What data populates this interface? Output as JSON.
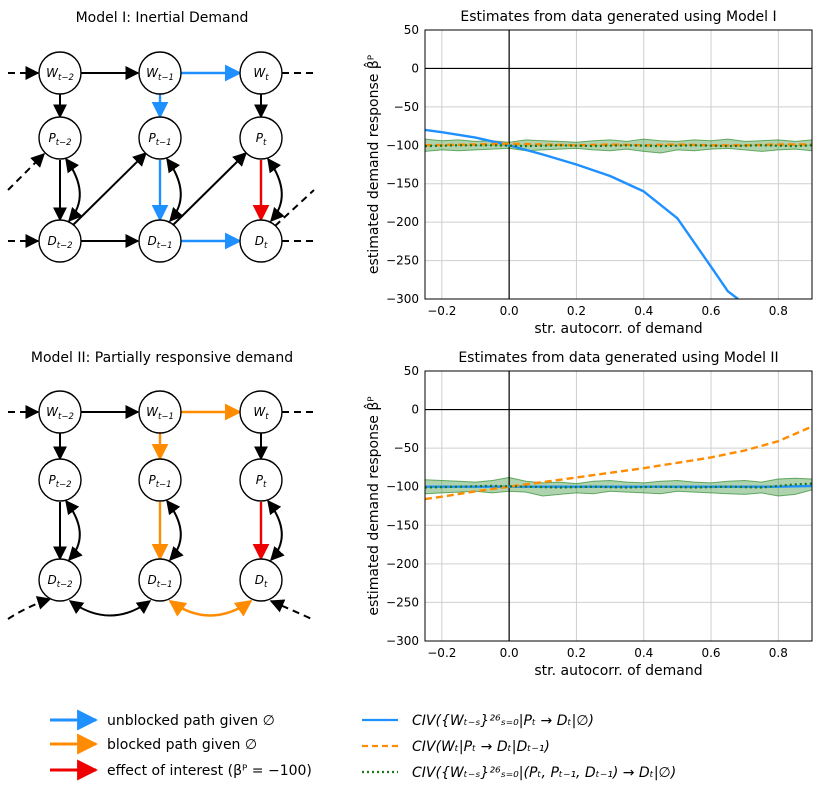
{
  "colors": {
    "blue": "#1e90ff",
    "orange": "#ff8c00",
    "red": "#ee0000",
    "green": "#1a7a1a",
    "band": "#2e8b2e"
  },
  "diagram1": {
    "title": "Model I: Inertial Demand"
  },
  "diagram2": {
    "title": "Model II: Partially responsive demand"
  },
  "nodes": {
    "W2": [
      "W",
      "t−2"
    ],
    "W1": [
      "W",
      "t−1"
    ],
    "W0": [
      "W",
      "t"
    ],
    "P2": [
      "P",
      "t−2"
    ],
    "P1": [
      "P",
      "t−1"
    ],
    "P0": [
      "P",
      "t"
    ],
    "D2": [
      "D",
      "t−2"
    ],
    "D1": [
      "D",
      "t−1"
    ],
    "D0": [
      "D",
      "t"
    ]
  },
  "chart_data": [
    {
      "type": "line",
      "title": "Estimates from data generated using Model I",
      "xlabel": "str. autocorr. of demand",
      "ylabel": "estimated demand response β̂ᴾ",
      "xlim": [
        -0.25,
        0.9
      ],
      "ylim": [
        -300,
        50
      ],
      "xticks": [
        -0.2,
        0.0,
        0.2,
        0.4,
        0.6,
        0.8
      ],
      "xtick_labels": [
        "−0.2",
        "0.0",
        "0.2",
        "0.4",
        "0.6",
        "0.8"
      ],
      "yticks": [
        50,
        0,
        -50,
        -100,
        -150,
        -200,
        -250,
        -300
      ],
      "ytick_labels": [
        "50",
        "0",
        "−50",
        "−100",
        "−150",
        "−200",
        "−250",
        "−300"
      ],
      "grid": true,
      "series": [
        {
          "name": "blue",
          "style": "solid",
          "x": [
            -0.25,
            -0.2,
            -0.1,
            0.0,
            0.1,
            0.2,
            0.3,
            0.4,
            0.5,
            0.6,
            0.65,
            0.68
          ],
          "y": [
            -80,
            -83,
            -90,
            -100,
            -112,
            -125,
            -140,
            -160,
            -195,
            -258,
            -290,
            -300
          ]
        },
        {
          "name": "orange",
          "style": "dashed",
          "x": [
            -0.25,
            -0.1,
            0.0,
            0.1,
            0.2,
            0.3,
            0.4,
            0.5,
            0.6,
            0.7,
            0.8,
            0.9
          ],
          "y": [
            -100,
            -99,
            -98,
            -99,
            -100,
            -99,
            -100,
            -99,
            -100,
            -100,
            -99,
            -99
          ]
        },
        {
          "name": "green",
          "style": "dotted",
          "x": [
            -0.25,
            -0.15,
            -0.05,
            0.05,
            0.15,
            0.25,
            0.35,
            0.45,
            0.55,
            0.65,
            0.75,
            0.85,
            0.9
          ],
          "y": [
            -101,
            -100,
            -100,
            -101,
            -100,
            -101,
            -100,
            -101,
            -100,
            -101,
            -100,
            -101,
            -100
          ]
        }
      ],
      "band": {
        "x": [
          -0.25,
          -0.2,
          -0.15,
          -0.1,
          -0.05,
          0.0,
          0.05,
          0.1,
          0.15,
          0.2,
          0.25,
          0.3,
          0.35,
          0.4,
          0.45,
          0.5,
          0.55,
          0.6,
          0.65,
          0.7,
          0.75,
          0.8,
          0.85,
          0.9
        ],
        "upper": [
          -92,
          -94,
          -93,
          -95,
          -94,
          -96,
          -93,
          -94,
          -95,
          -96,
          -94,
          -93,
          -95,
          -92,
          -94,
          -95,
          -93,
          -94,
          -92,
          -95,
          -94,
          -93,
          -95,
          -93
        ],
        "lower": [
          -108,
          -106,
          -107,
          -106,
          -105,
          -104,
          -107,
          -106,
          -105,
          -104,
          -106,
          -107,
          -105,
          -108,
          -110,
          -106,
          -107,
          -105,
          -104,
          -106,
          -108,
          -106,
          -105,
          -107
        ]
      }
    },
    {
      "type": "line",
      "title": "Estimates from data generated using Model II",
      "xlabel": "str. autocorr. of demand",
      "ylabel": "estimated demand response β̂ᴾ",
      "xlim": [
        -0.25,
        0.9
      ],
      "ylim": [
        -300,
        50
      ],
      "xticks": [
        -0.2,
        0.0,
        0.2,
        0.4,
        0.6,
        0.8
      ],
      "xtick_labels": [
        "−0.2",
        "0.0",
        "0.2",
        "0.4",
        "0.6",
        "0.8"
      ],
      "yticks": [
        50,
        0,
        -50,
        -100,
        -150,
        -200,
        -250,
        -300
      ],
      "ytick_labels": [
        "50",
        "0",
        "−50",
        "−100",
        "−150",
        "−200",
        "−250",
        "−300"
      ],
      "grid": true,
      "series": [
        {
          "name": "blue",
          "style": "solid",
          "x": [
            -0.25,
            -0.1,
            0.0,
            0.1,
            0.2,
            0.3,
            0.4,
            0.5,
            0.6,
            0.7,
            0.8,
            0.9
          ],
          "y": [
            -100,
            -100,
            -100,
            -100,
            -100,
            -100,
            -100,
            -100,
            -100,
            -100,
            -100,
            -99
          ]
        },
        {
          "name": "orange",
          "style": "dashed",
          "x": [
            -0.25,
            -0.2,
            -0.1,
            0.0,
            0.1,
            0.2,
            0.3,
            0.4,
            0.5,
            0.6,
            0.7,
            0.8,
            0.9
          ],
          "y": [
            -116,
            -113,
            -106,
            -100,
            -94,
            -88,
            -82,
            -76,
            -69,
            -62,
            -53,
            -41,
            -22
          ]
        },
        {
          "name": "green",
          "style": "dotted",
          "x": [
            -0.25,
            -0.15,
            -0.05,
            0.05,
            0.15,
            0.25,
            0.35,
            0.45,
            0.55,
            0.65,
            0.75,
            0.85,
            0.9
          ],
          "y": [
            -101,
            -100,
            -99,
            -100,
            -101,
            -100,
            -101,
            -100,
            -101,
            -100,
            -101,
            -97,
            -96
          ]
        }
      ],
      "band": {
        "x": [
          -0.25,
          -0.2,
          -0.15,
          -0.1,
          -0.05,
          0.0,
          0.05,
          0.1,
          0.15,
          0.2,
          0.25,
          0.3,
          0.35,
          0.4,
          0.45,
          0.5,
          0.55,
          0.6,
          0.65,
          0.7,
          0.75,
          0.8,
          0.85,
          0.9
        ],
        "upper": [
          -91,
          -92,
          -93,
          -94,
          -92,
          -88,
          -93,
          -95,
          -94,
          -96,
          -93,
          -92,
          -94,
          -95,
          -93,
          -92,
          -94,
          -95,
          -93,
          -92,
          -94,
          -90,
          -89,
          -90
        ],
        "lower": [
          -109,
          -108,
          -107,
          -106,
          -108,
          -106,
          -107,
          -112,
          -110,
          -108,
          -109,
          -106,
          -107,
          -108,
          -109,
          -106,
          -107,
          -108,
          -109,
          -110,
          -108,
          -112,
          -110,
          -104
        ]
      }
    }
  ],
  "legend": {
    "arrows": [
      {
        "color": "blue",
        "label": "unblocked path given ∅"
      },
      {
        "color": "orange",
        "label": "blocked path given ∅"
      },
      {
        "color": "red",
        "label": "effect of interest (βᴾ = −100)"
      }
    ],
    "lines": [
      {
        "color": "blue",
        "style": "solid",
        "label": "CIV({Wₜ₋ₛ}²⁶ₛ₌₀|Pₜ → Dₜ|∅)"
      },
      {
        "color": "orange",
        "style": "dashed",
        "label": "CIV(Wₜ|Pₜ → Dₜ|Dₜ₋₁)"
      },
      {
        "color": "green",
        "style": "dotted",
        "label": "CIV({Wₜ₋ₛ}²⁶ₛ₌₀|(Pₜ, Pₜ₋₁, Dₜ₋₁) → Dₜ|∅)"
      }
    ]
  }
}
